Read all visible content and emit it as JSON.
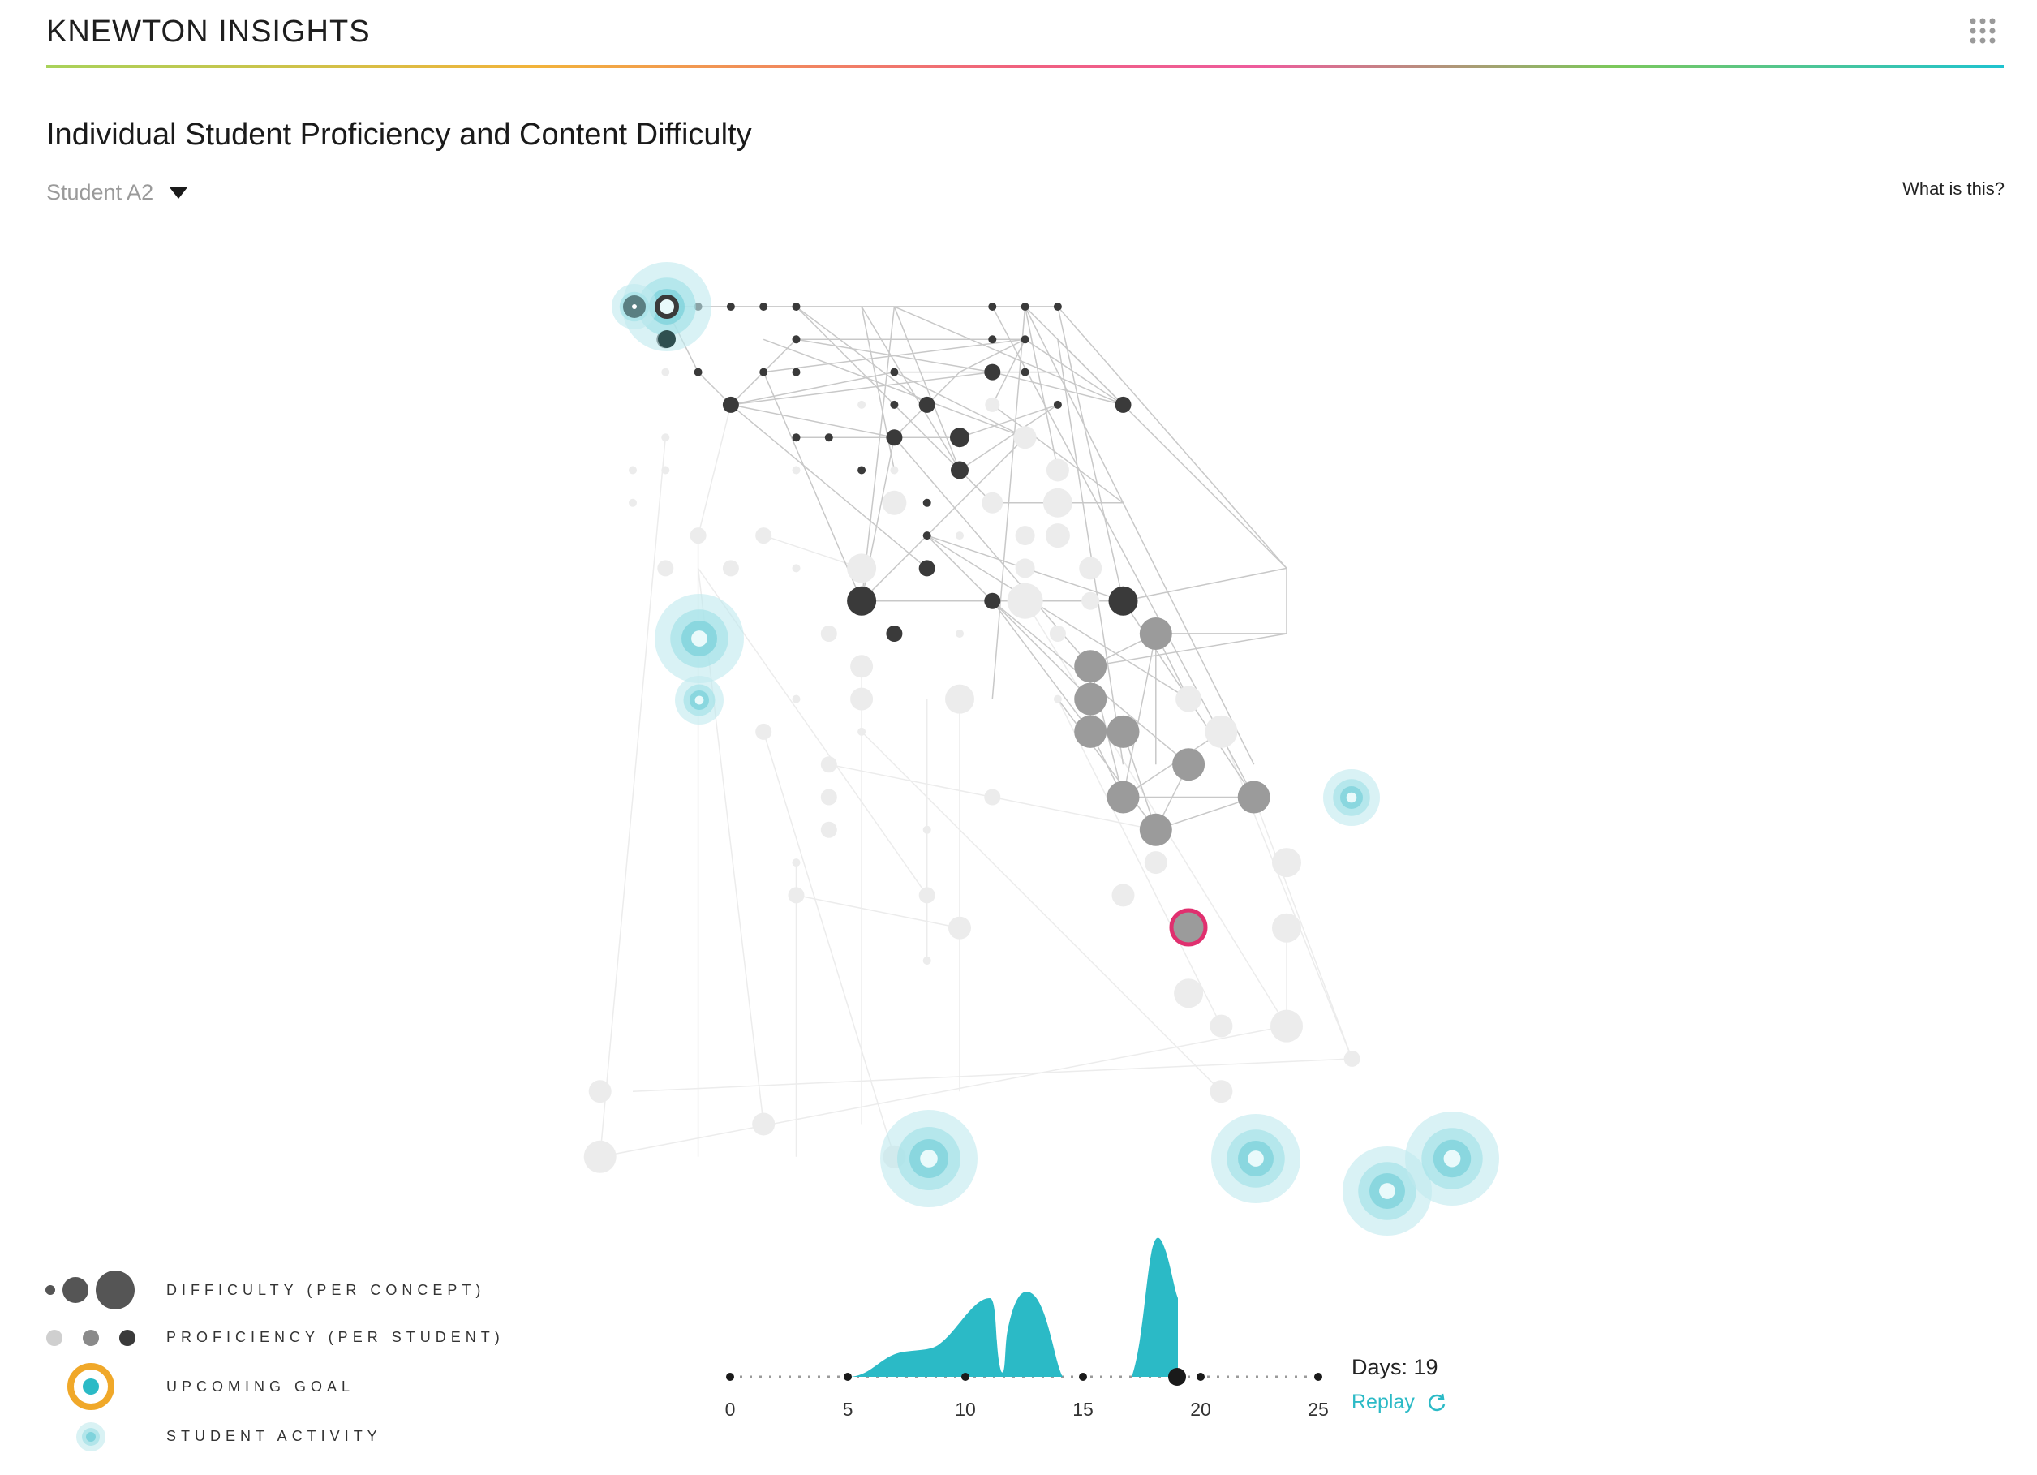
{
  "header": {
    "app_title": "KNEWTON INSIGHTS",
    "apps_icon": "grid-icon"
  },
  "main": {
    "title": "Individual Student Proficiency and Content Difficulty",
    "student_select": {
      "value": "Student A2",
      "icon": "triangle-down-icon"
    },
    "help_link": "What is this?"
  },
  "legend": {
    "difficulty": "DIFFICULTY (PER CONCEPT)",
    "proficiency": "PROFICIENCY (PER STUDENT)",
    "upcoming_goal": "UPCOMING GOAL",
    "student_activity": "STUDENT ACTIVITY"
  },
  "colors": {
    "activity": "#2bbac6",
    "activity_light": "#bfeaee",
    "goal_ring": "#f0a829",
    "current_ring": "#e0306f",
    "mastered": "#3a3a3a",
    "in_progress": "#9b9b9b",
    "not_started": "#ececec"
  },
  "timeline": {
    "ticks": [
      "0",
      "5",
      "10",
      "15",
      "20",
      "25"
    ],
    "current_day": 19,
    "days_label": "Days: 19",
    "replay_label": "Replay",
    "replay_icon": "refresh-icon"
  }
}
